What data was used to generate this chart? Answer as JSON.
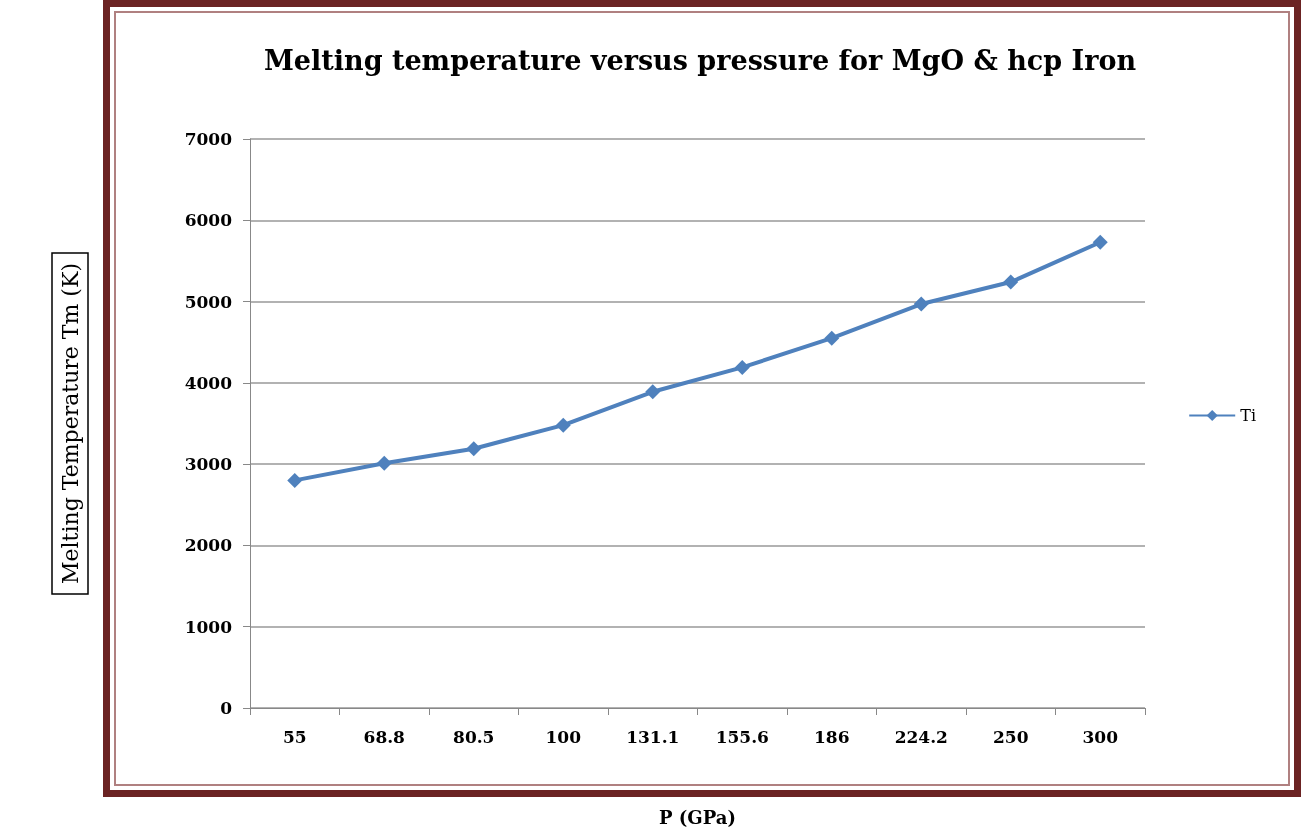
{
  "chart_data": {
    "type": "line",
    "title": "Melting temperature versus pressure for MgO & hcp Iron",
    "xlabel": "P (GPa)",
    "ylabel": "Melting Temperature Tm (K)",
    "categories": [
      "55",
      "68.8",
      "80.5",
      "100",
      "131.1",
      "155.6",
      "186",
      "224.2",
      "250",
      "300"
    ],
    "series": [
      {
        "name": "Ti",
        "color": "#4f81bd",
        "values": [
          2800,
          3010,
          3190,
          3480,
          3890,
          4190,
          4550,
          4970,
          5240,
          5730
        ]
      }
    ],
    "ylim": [
      0,
      7000
    ],
    "yticks": [
      0,
      1000,
      2000,
      3000,
      4000,
      5000,
      6000,
      7000
    ],
    "grid": "y",
    "legend": "right",
    "marker": "diamond",
    "line_style": "solid"
  }
}
